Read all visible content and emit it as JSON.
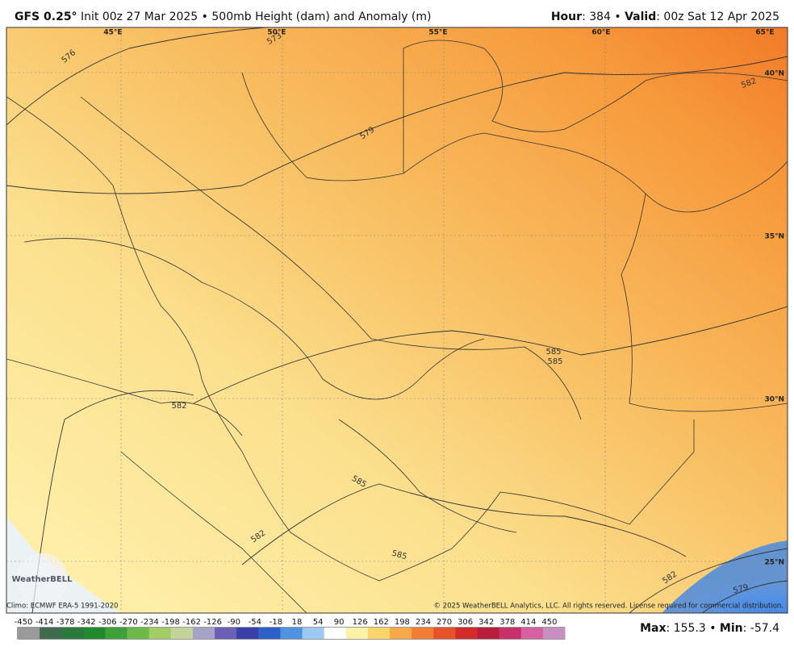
{
  "header": {
    "left": [
      {
        "text": "GFS 0.25°",
        "bold": true
      },
      {
        "text": " Init 00z 27 Mar 2025 • 500mb Height (dam) and Anomaly (m)",
        "bold": false
      }
    ],
    "right": [
      {
        "text": "Hour",
        "bold": true
      },
      {
        "text": ": 384 • ",
        "bold": false
      },
      {
        "text": "Valid",
        "bold": true
      },
      {
        "text": ": 00z Sat 12 Apr 2025",
        "bold": false
      }
    ]
  },
  "map": {
    "longitudes": [
      "45°E",
      "50°E",
      "55°E",
      "60°E",
      "65°E"
    ],
    "latitudes": [
      "40°N",
      "35°N",
      "30°N",
      "25°N"
    ],
    "contours": [
      "573",
      "576",
      "579",
      "582",
      "585",
      "582",
      "585",
      "582",
      "585",
      "585",
      "582",
      "579"
    ],
    "logo": "WeatherBELL"
  },
  "footer": {
    "climo": "Climo: ECMWF ERA-5 1991-2020",
    "copyright": "© 2025 WeatherBELL Analytics, LLC. All rights reserved. License required for commercial distribution."
  },
  "colorbar": {
    "ticks": [
      -450,
      -414,
      -378,
      -342,
      -306,
      -270,
      -234,
      -198,
      -162,
      -126,
      -90,
      -54,
      -18,
      18,
      54,
      90,
      126,
      162,
      198,
      234,
      270,
      306,
      342,
      378,
      414,
      450
    ]
  },
  "stats": [
    {
      "text": "Max",
      "bold": true
    },
    {
      "text": ": 155.3 • ",
      "bold": false
    },
    {
      "text": "Min",
      "bold": true
    },
    {
      "text": ": -57.4",
      "bold": false
    }
  ]
}
